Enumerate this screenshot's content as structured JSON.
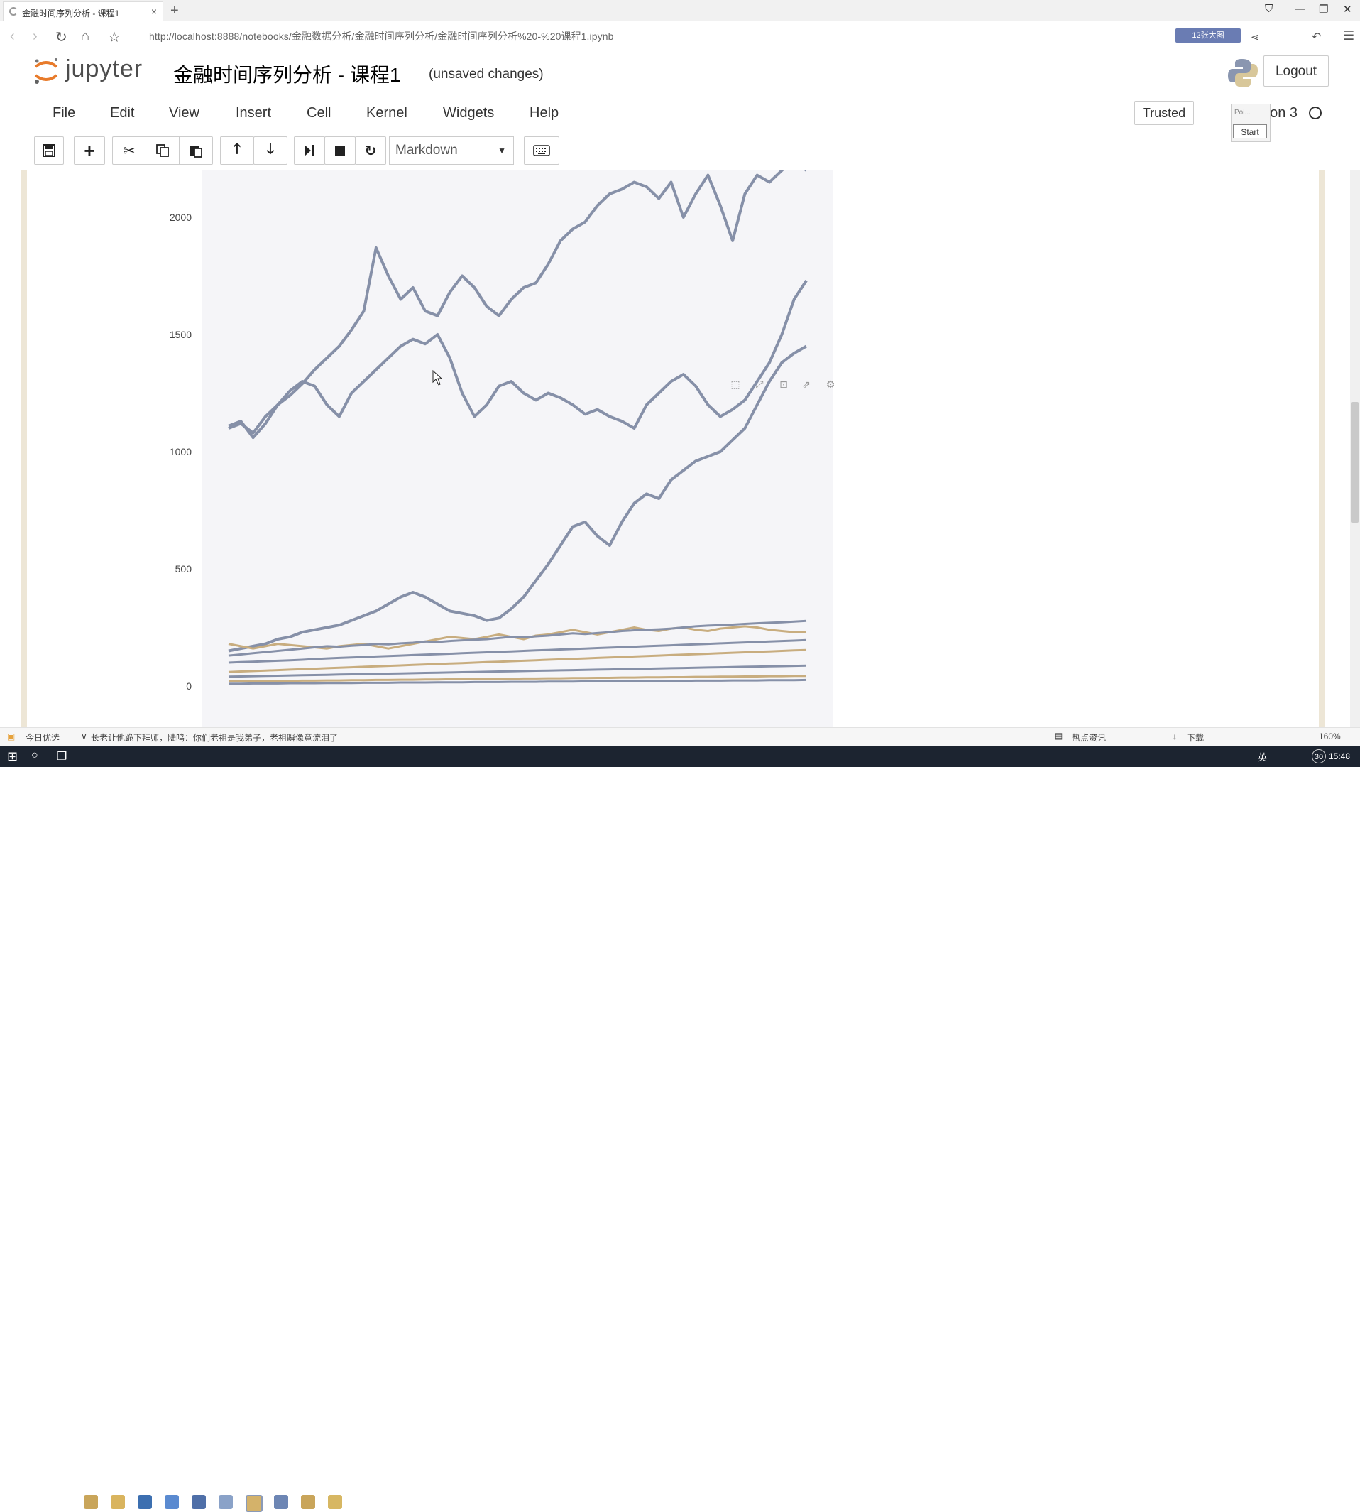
{
  "browser": {
    "tab_title": "金融时间序列分析 - 课程1",
    "tab_close": "×",
    "new_tab": "+",
    "url": "http://localhost:8888/notebooks/金融数据分析/金融时间序列分析/金融时间序列分析%20-%20课程1.ipynb",
    "extension_badge": "12张大图"
  },
  "jupyter": {
    "logo_text": "jupyter",
    "notebook_title": "金融时间序列分析 - 课程1",
    "save_status": "(unsaved changes)",
    "logout_label": "Logout",
    "menu": [
      "File",
      "Edit",
      "View",
      "Insert",
      "Cell",
      "Kernel",
      "Widgets",
      "Help"
    ],
    "trusted_label": "Trusted",
    "kernel_name": "non 3",
    "popup_text": "Poi...",
    "popup_button": "Start",
    "cell_type": "Markdown"
  },
  "chart_data": {
    "type": "line",
    "yticks": [
      "2000",
      "1500",
      "1000",
      "500",
      "0"
    ],
    "ylim": [
      0,
      2200
    ],
    "grid": false,
    "series": [
      {
        "color": "#8690a8",
        "values": [
          1100,
          1120,
          1080,
          1150,
          1200,
          1240,
          1290,
          1350,
          1400,
          1450,
          1520,
          1600,
          1870,
          1750,
          1650,
          1700,
          1600,
          1580,
          1680,
          1750,
          1700,
          1620,
          1580,
          1650,
          1700,
          1720,
          1800,
          1900,
          1950,
          1980,
          2050,
          2100,
          2120,
          2150,
          2130,
          2080,
          2150,
          2000,
          2100,
          2180,
          2050,
          1900,
          2100,
          2180,
          2150,
          2200,
          2250,
          2200
        ]
      },
      {
        "color": "#8690a8",
        "values": [
          1110,
          1130,
          1060,
          1120,
          1200,
          1260,
          1300,
          1280,
          1200,
          1150,
          1250,
          1300,
          1350,
          1400,
          1450,
          1480,
          1460,
          1500,
          1400,
          1250,
          1150,
          1200,
          1280,
          1300,
          1250,
          1220,
          1250,
          1230,
          1200,
          1160,
          1180,
          1150,
          1130,
          1100,
          1200,
          1250,
          1300,
          1330,
          1280,
          1200,
          1150,
          1180,
          1220,
          1300,
          1380,
          1500,
          1650,
          1730
        ]
      },
      {
        "color": "#8690a8",
        "values": [
          150,
          160,
          170,
          180,
          200,
          210,
          230,
          240,
          250,
          260,
          280,
          300,
          320,
          350,
          380,
          400,
          380,
          350,
          320,
          310,
          300,
          280,
          290,
          330,
          380,
          450,
          520,
          600,
          680,
          700,
          640,
          600,
          700,
          780,
          820,
          800,
          880,
          920,
          960,
          980,
          1000,
          1050,
          1100,
          1200,
          1300,
          1380,
          1420,
          1450
        ]
      },
      {
        "color": "#c8ad7f",
        "values": [
          180,
          170,
          160,
          170,
          180,
          175,
          170,
          165,
          160,
          170,
          175,
          180,
          170,
          160,
          170,
          180,
          190,
          200,
          210,
          205,
          200,
          210,
          220,
          210,
          200,
          215,
          220,
          230,
          240,
          230,
          220,
          230,
          240,
          250,
          240,
          235,
          245,
          250,
          240,
          235,
          245,
          250,
          255,
          250,
          240,
          235,
          230,
          230
        ]
      },
      {
        "color": "#8690a8",
        "values": [
          130,
          135,
          140,
          145,
          150,
          155,
          160,
          165,
          170,
          168,
          172,
          175,
          180,
          178,
          182,
          185,
          190,
          188,
          192,
          195,
          198,
          200,
          205,
          210,
          208,
          212,
          215,
          220,
          225,
          222,
          226,
          230,
          235,
          238,
          240,
          242,
          245,
          250,
          255,
          258,
          260,
          262,
          265,
          268,
          270,
          272,
          275,
          278
        ]
      },
      {
        "color": "#8690a8",
        "values": [
          100,
          102,
          104,
          106,
          108,
          110,
          112,
          115,
          118,
          120,
          122,
          124,
          126,
          128,
          130,
          132,
          134,
          136,
          138,
          140,
          142,
          144,
          146,
          148,
          150,
          152,
          154,
          156,
          158,
          160,
          162,
          164,
          166,
          168,
          170,
          172,
          174,
          176,
          178,
          180,
          182,
          184,
          186,
          188,
          190,
          192,
          194,
          196
        ]
      },
      {
        "color": "#c8ad7f",
        "values": [
          60,
          62,
          64,
          66,
          68,
          70,
          72,
          74,
          76,
          78,
          80,
          82,
          84,
          86,
          88,
          90,
          92,
          94,
          96,
          98,
          100,
          102,
          104,
          106,
          108,
          110,
          112,
          114,
          116,
          118,
          120,
          122,
          124,
          126,
          128,
          130,
          132,
          134,
          136,
          138,
          140,
          142,
          144,
          146,
          148,
          150,
          152,
          154
        ]
      },
      {
        "color": "#8690a8",
        "values": [
          40,
          41,
          42,
          43,
          44,
          45,
          46,
          47,
          48,
          49,
          50,
          51,
          52,
          53,
          54,
          55,
          56,
          57,
          58,
          59,
          60,
          61,
          62,
          63,
          64,
          65,
          66,
          67,
          68,
          69,
          70,
          71,
          72,
          73,
          74,
          75,
          76,
          77,
          78,
          79,
          80,
          81,
          82,
          83,
          84,
          85,
          86,
          87
        ]
      },
      {
        "color": "#c8ad7f",
        "values": [
          20,
          20,
          21,
          21,
          22,
          22,
          23,
          23,
          24,
          24,
          25,
          25,
          26,
          26,
          27,
          27,
          28,
          28,
          29,
          29,
          30,
          30,
          31,
          31,
          32,
          32,
          33,
          33,
          34,
          34,
          35,
          35,
          36,
          36,
          37,
          37,
          38,
          38,
          39,
          39,
          40,
          40,
          41,
          41,
          42,
          42,
          43,
          43
        ]
      },
      {
        "color": "#8690a8",
        "values": [
          10,
          10,
          11,
          11,
          11,
          12,
          12,
          12,
          13,
          13,
          13,
          14,
          14,
          14,
          15,
          15,
          15,
          16,
          16,
          16,
          17,
          17,
          17,
          18,
          18,
          18,
          19,
          19,
          19,
          20,
          20,
          20,
          21,
          21,
          21,
          22,
          22,
          22,
          23,
          23,
          23,
          24,
          24,
          24,
          25,
          25,
          25,
          26
        ]
      }
    ]
  },
  "statusbar": {
    "left1": "今日优选",
    "left2": "长老让他跪下拜师，陆鸣：你们老祖是我弟子，老祖瞬像竟流泪了",
    "right1": "热点资讯",
    "right2": "下载",
    "zoom": "160%"
  },
  "taskbar": {
    "ime": "英",
    "notif_count": "30",
    "clock": "15:48"
  }
}
